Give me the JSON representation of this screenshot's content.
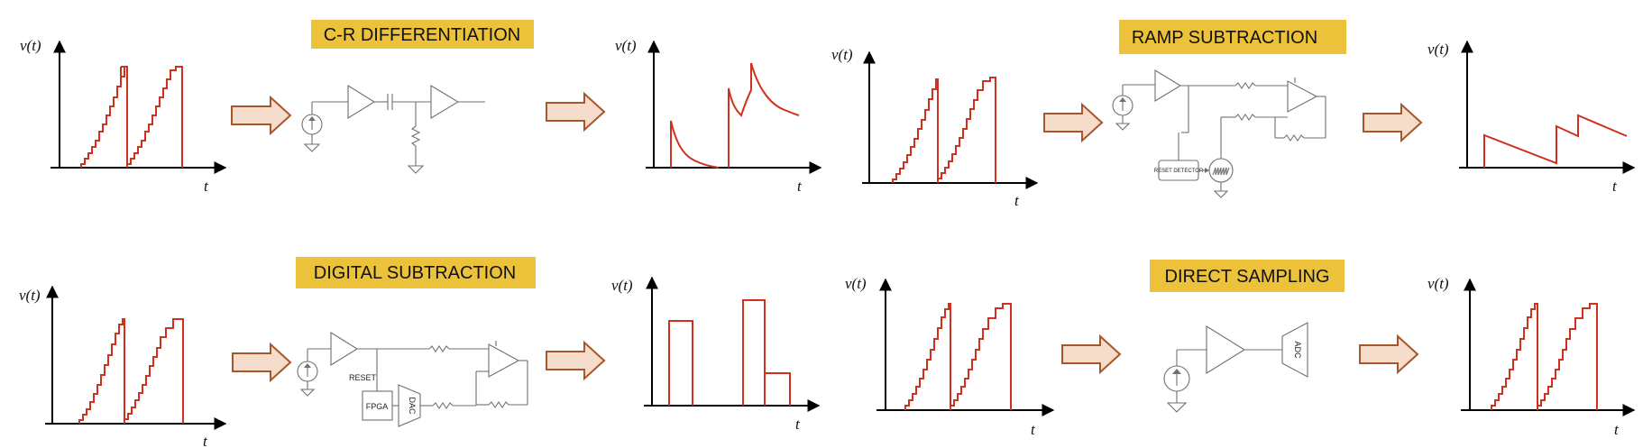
{
  "axis_labels": {
    "y": "v(t)",
    "x": "t"
  },
  "banners": {
    "cr": "C-R DIFFERENTIATION",
    "ramp": "RAMP SUBTRACTION",
    "digital": "DIGITAL SUBTRACTION",
    "direct": "DIRECT SAMPLING"
  },
  "circuit_labels": {
    "reset_detector": "RESET DETECTOR",
    "reset": "RESET",
    "fpga": "FPGA",
    "dac": "DAC",
    "adc": "ADC"
  },
  "colors": {
    "signal": "#d0311f",
    "banner": "#ecc23a",
    "arrow_fill": "#f6dccb",
    "arrow_stroke": "#a8552a"
  },
  "icons": [
    "current-source-icon",
    "amplifier-icon",
    "capacitor-icon",
    "resistor-icon",
    "ground-icon",
    "ramp-generator-icon",
    "flow-arrow-icon"
  ]
}
